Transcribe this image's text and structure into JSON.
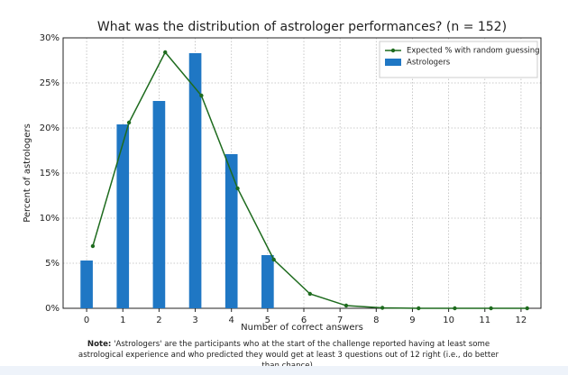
{
  "chart_data": {
    "type": "bar_line",
    "title": "What was the distribution of astrologer performances? (n = 152)",
    "x_label": "Number of correct answers",
    "y_label": "Percent of astrologers",
    "categories": [
      "0",
      "1",
      "2",
      "3",
      "4",
      "5",
      "6",
      "7",
      "8",
      "9",
      "10",
      "11",
      "12"
    ],
    "series": [
      {
        "name": "Expected % with random guessing",
        "type": "line",
        "color": "#1e6b1e",
        "values": [
          6.9,
          20.6,
          28.4,
          23.6,
          13.3,
          5.4,
          1.6,
          0.3,
          0.05,
          0,
          0,
          0,
          0
        ]
      },
      {
        "name": "Astrologers",
        "type": "bar",
        "color": "#1f77c4",
        "values": [
          5.3,
          20.4,
          23.0,
          28.3,
          17.1,
          5.9,
          0,
          0,
          0,
          0,
          0,
          0,
          0
        ]
      }
    ],
    "ylim": [
      0,
      30
    ],
    "yticks": [
      {
        "value": 0,
        "label": "0%"
      },
      {
        "value": 5,
        "label": "5%"
      },
      {
        "value": 10,
        "label": "10%"
      },
      {
        "value": 15,
        "label": "15%"
      },
      {
        "value": 20,
        "label": "20%"
      },
      {
        "value": 25,
        "label": "25%"
      },
      {
        "value": 30,
        "label": "30%"
      }
    ],
    "grid": true,
    "legend": "upper right",
    "note": {
      "label": "Note:",
      "text": "'Astrologers' are the participants who at the start of the challenge reported having at least some astrological experience and who predicted they would get at least 3 questions out of 12 right (i.e., do better than chance)."
    }
  }
}
